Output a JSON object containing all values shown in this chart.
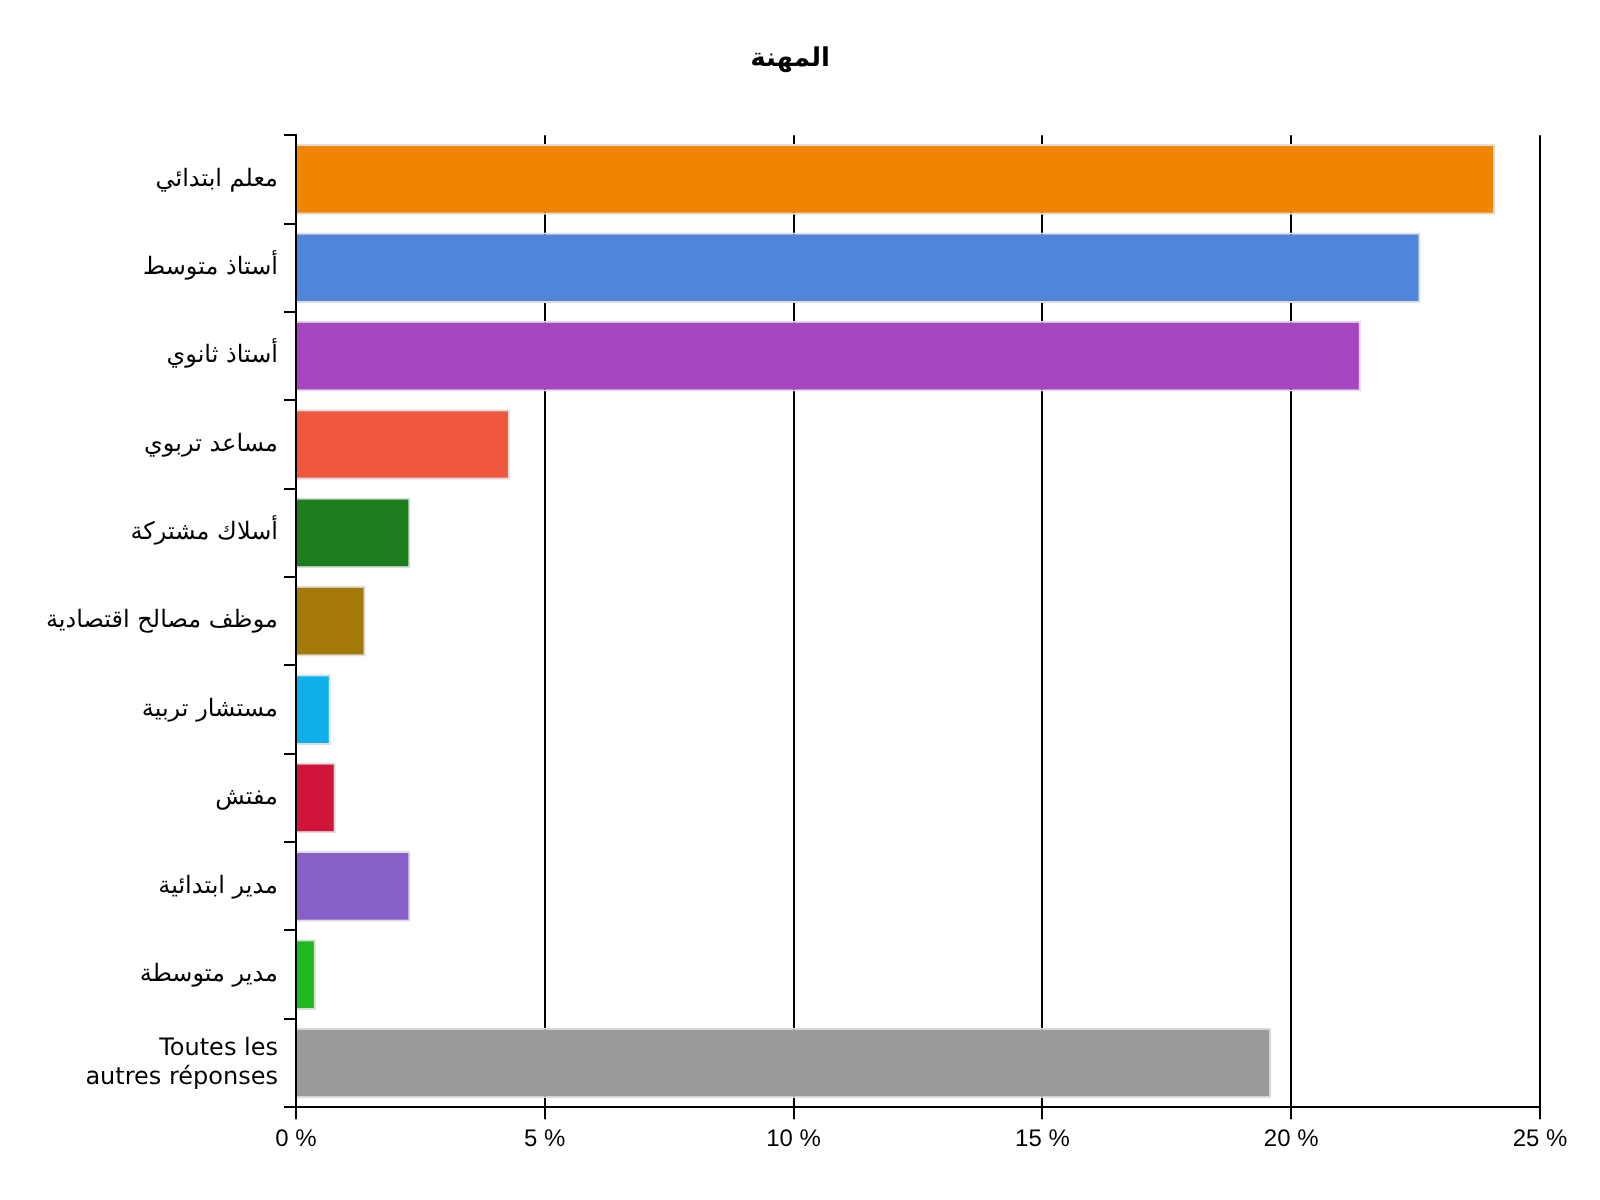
{
  "chart_data": {
    "type": "bar",
    "orientation": "horizontal",
    "title": "المهنة",
    "categories": [
      "معلم ابتدائي",
      "أستاذ متوسط",
      "أستاذ ثانوي",
      "مساعد تربوي",
      "أسلاك مشتركة",
      "موظف مصالح اقتصادية",
      "مستشار تربية",
      "مفتش",
      "مدير ابتدائية",
      "مدير متوسطة",
      "Toutes les\nautres réponses"
    ],
    "values": [
      24.1,
      22.6,
      21.4,
      4.3,
      2.3,
      1.4,
      0.7,
      0.8,
      2.3,
      0.4,
      19.6
    ],
    "colors": [
      "#f28500",
      "#5085dc",
      "#a845c0",
      "#f0583e",
      "#1b7d1b",
      "#a67a0a",
      "#0fb0ea",
      "#d0143a",
      "#8660c8",
      "#22b822",
      "#9a9a9a"
    ],
    "xlim": [
      0,
      25
    ],
    "xticks": [
      {
        "value": 0,
        "label": "0 %"
      },
      {
        "value": 5,
        "label": "5 %"
      },
      {
        "value": 10,
        "label": "10 %"
      },
      {
        "value": 15,
        "label": "15 %"
      },
      {
        "value": 20,
        "label": "20 %"
      },
      {
        "value": 25,
        "label": "25 %"
      }
    ],
    "grid": "x",
    "legend": false
  }
}
